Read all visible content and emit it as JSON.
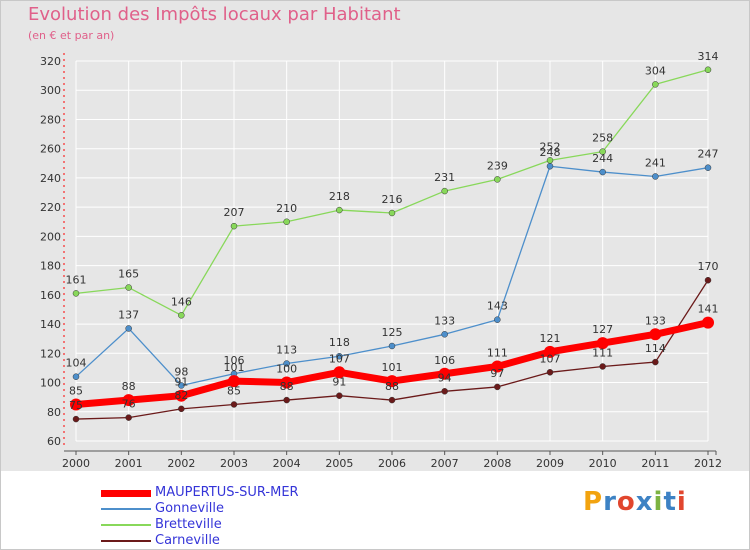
{
  "title": "Evolution des Impôts locaux par Habitant",
  "subtitle": "(en € et par an)",
  "logo": {
    "text": "Proxiti",
    "colors": [
      "#f2a30f",
      "#3d82c4",
      "#e1462e",
      "#3d82c4",
      "#7cb342",
      "#3d82c4",
      "#e1462e"
    ]
  },
  "colors": {
    "title": "#e0608a",
    "axis_text": "#333333",
    "plot_bg": "#e6e6e6",
    "grid": "#ffffff",
    "legend_text": "#3535d8"
  },
  "chart_data": {
    "type": "line",
    "x": [
      2000,
      2001,
      2002,
      2003,
      2004,
      2005,
      2006,
      2007,
      2008,
      2009,
      2010,
      2011,
      2012
    ],
    "ylim": [
      60,
      320
    ],
    "yticks": [
      60,
      80,
      100,
      120,
      140,
      160,
      180,
      200,
      220,
      240,
      260,
      280,
      300,
      320
    ],
    "grid": true,
    "legend_position": "bottom-left",
    "series": [
      {
        "name": "MAUPERTUS-SUR-MER",
        "color": "#ff0000",
        "width": 7,
        "marker": 6,
        "values": [
          85,
          88,
          91,
          101,
          100,
          107,
          101,
          106,
          111,
          121,
          127,
          133,
          141
        ]
      },
      {
        "name": "Gonneville",
        "color": "#4d8fcb",
        "width": 1.3,
        "marker": 3,
        "values": [
          104,
          137,
          98,
          106,
          113,
          118,
          125,
          133,
          143,
          248,
          244,
          241,
          247
        ]
      },
      {
        "name": "Bretteville",
        "color": "#88d85a",
        "width": 1.3,
        "marker": 3,
        "values": [
          161,
          165,
          146,
          207,
          210,
          218,
          216,
          231,
          239,
          252,
          258,
          304,
          314
        ]
      },
      {
        "name": "Carneville",
        "color": "#6b1a1a",
        "width": 1.3,
        "marker": 3,
        "values": [
          75,
          76,
          82,
          85,
          88,
          91,
          88,
          94,
          97,
          107,
          111,
          114,
          170
        ]
      }
    ]
  }
}
